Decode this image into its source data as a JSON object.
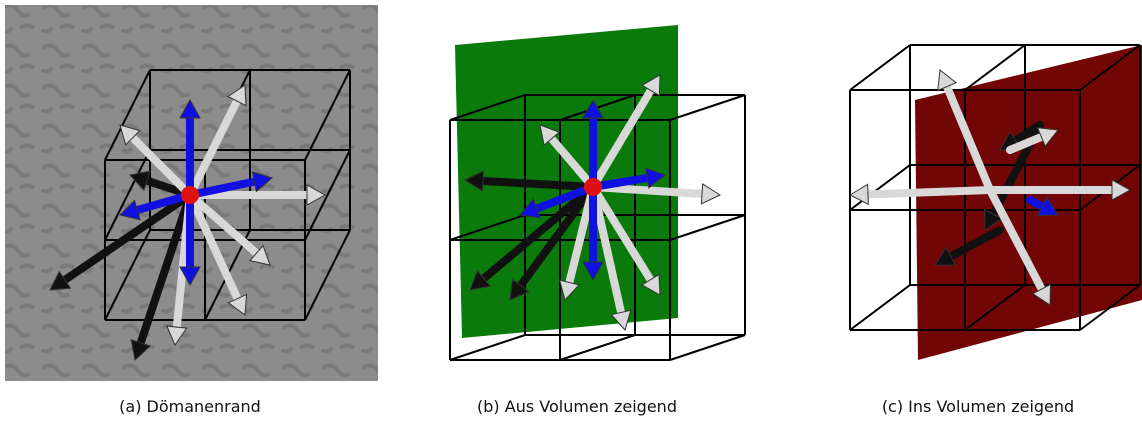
{
  "subfigures": [
    {
      "caption": "(a) Dömanenrand"
    },
    {
      "caption": "(b) Aus Volumen zeigend"
    },
    {
      "caption": "(c) Ins Volumen zeigend"
    }
  ]
}
